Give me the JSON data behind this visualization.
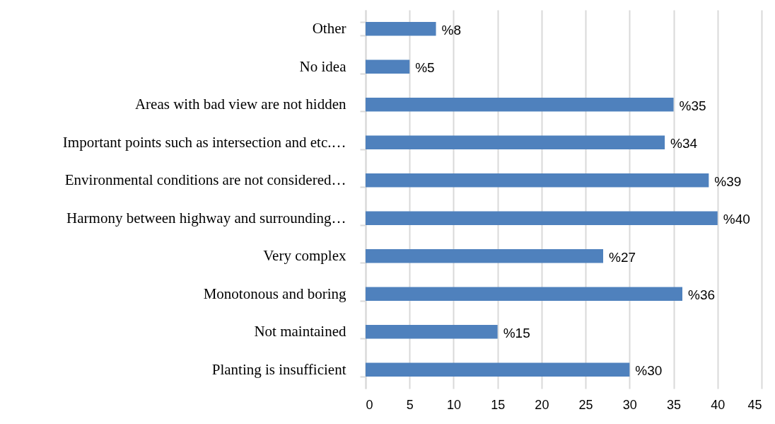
{
  "chart_data": {
    "type": "bar",
    "orientation": "horizontal",
    "categories": [
      "Other",
      "No idea",
      "Areas with bad view are not hidden",
      "Important points such as intersection and etc.…",
      "Environmental conditions are not considered…",
      "Harmony between highway and surrounding…",
      "Very complex",
      "Monotonous  and boring",
      "Not maintained",
      "Planting is insufficient"
    ],
    "values": [
      8,
      5,
      35,
      34,
      39,
      40,
      27,
      36,
      15,
      30
    ],
    "value_labels": [
      "%8",
      "%5",
      "%35",
      "%34",
      "%39",
      "%40",
      "%27",
      "%36",
      "%15",
      "%30"
    ],
    "color": "#4f81bd",
    "xlim": [
      0,
      45
    ],
    "xticks": [
      0,
      5,
      10,
      15,
      20,
      25,
      30,
      35,
      40,
      45
    ],
    "grid": "x"
  }
}
